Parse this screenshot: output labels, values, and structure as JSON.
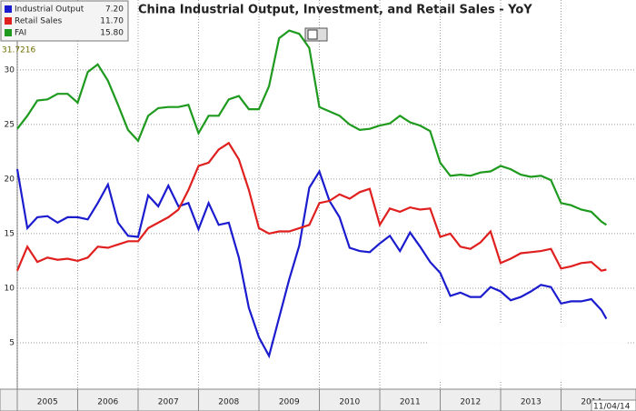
{
  "chart_data": {
    "type": "line",
    "title": "China Industrial Output, Investment, and Retail Sales - YoY",
    "annotation": "31.7216",
    "date_label": "11/04/14",
    "x": [
      2005.0,
      2005.167,
      2005.333,
      2005.5,
      2005.667,
      2005.833,
      2006.0,
      2006.167,
      2006.333,
      2006.5,
      2006.667,
      2006.833,
      2007.0,
      2007.167,
      2007.333,
      2007.5,
      2007.667,
      2007.833,
      2008.0,
      2008.167,
      2008.333,
      2008.5,
      2008.667,
      2008.833,
      2009.0,
      2009.167,
      2009.333,
      2009.5,
      2009.667,
      2009.833,
      2010.0,
      2010.167,
      2010.333,
      2010.5,
      2010.667,
      2010.833,
      2011.0,
      2011.167,
      2011.333,
      2011.5,
      2011.667,
      2011.833,
      2012.0,
      2012.167,
      2012.333,
      2012.5,
      2012.667,
      2012.833,
      2013.0,
      2013.167,
      2013.333,
      2013.5,
      2013.667,
      2013.833,
      2014.0,
      2014.167,
      2014.333,
      2014.5,
      2014.667,
      2014.75
    ],
    "xlim": [
      2005.0,
      2015.24
    ],
    "xticks": [
      2005,
      2006,
      2007,
      2008,
      2009,
      2010,
      2011,
      2012,
      2013,
      2014
    ],
    "ylim": [
      0.75,
      36.4
    ],
    "yticks": [
      5,
      10,
      15,
      20,
      25,
      30
    ],
    "grid": true,
    "series": [
      {
        "name": "Industrial Output",
        "last": "7.20",
        "color": "#1c1ccf",
        "values": [
          20.9,
          15.5,
          16.5,
          16.6,
          16.0,
          16.5,
          16.5,
          16.3,
          17.8,
          19.5,
          16.0,
          14.8,
          14.7,
          18.5,
          17.5,
          19.4,
          17.5,
          17.8,
          15.4,
          17.8,
          15.8,
          16.0,
          12.8,
          8.2,
          5.5,
          3.8,
          7.3,
          10.8,
          13.9,
          19.2,
          20.7,
          18.0,
          16.5,
          13.7,
          13.4,
          13.3,
          14.1,
          14.8,
          13.4,
          15.1,
          13.8,
          12.4,
          11.4,
          9.3,
          9.6,
          9.2,
          9.2,
          10.1,
          9.7,
          8.9,
          9.2,
          9.7,
          10.3,
          10.1,
          8.6,
          8.8,
          8.8,
          9.0,
          8.0,
          7.2
        ]
      },
      {
        "name": "Retail Sales",
        "last": "11.70",
        "color": "#e01f1f",
        "values": [
          11.6,
          13.8,
          12.4,
          12.8,
          12.6,
          12.7,
          12.5,
          12.8,
          13.8,
          13.7,
          14.0,
          14.3,
          14.3,
          15.5,
          16.0,
          16.5,
          17.2,
          19.0,
          21.2,
          21.5,
          22.7,
          23.3,
          21.8,
          19.0,
          15.5,
          15.0,
          15.2,
          15.2,
          15.5,
          15.8,
          17.8,
          18.0,
          18.6,
          18.2,
          18.8,
          19.1,
          15.8,
          17.3,
          17.0,
          17.4,
          17.2,
          17.3,
          14.7,
          15.0,
          13.8,
          13.6,
          14.2,
          15.2,
          12.3,
          12.7,
          13.2,
          13.3,
          13.4,
          13.6,
          11.8,
          12.0,
          12.3,
          12.4,
          11.6,
          11.7
        ]
      },
      {
        "name": "FAI",
        "last": "15.80",
        "color": "#1e9a1e",
        "values": [
          24.6,
          25.8,
          27.2,
          27.3,
          27.8,
          27.8,
          27.0,
          29.8,
          30.5,
          29.0,
          26.8,
          24.5,
          23.5,
          25.8,
          26.5,
          26.6,
          26.6,
          26.8,
          24.2,
          25.8,
          25.8,
          27.3,
          27.6,
          26.4,
          26.4,
          28.5,
          32.9,
          33.6,
          33.3,
          32.0,
          26.6,
          26.2,
          25.8,
          25.0,
          24.5,
          24.6,
          24.9,
          25.1,
          25.8,
          25.2,
          24.9,
          24.4,
          21.5,
          20.3,
          20.4,
          20.3,
          20.6,
          20.7,
          21.2,
          20.9,
          20.4,
          20.2,
          20.3,
          19.9,
          17.8,
          17.6,
          17.2,
          17.0,
          16.1,
          15.8
        ]
      }
    ]
  }
}
